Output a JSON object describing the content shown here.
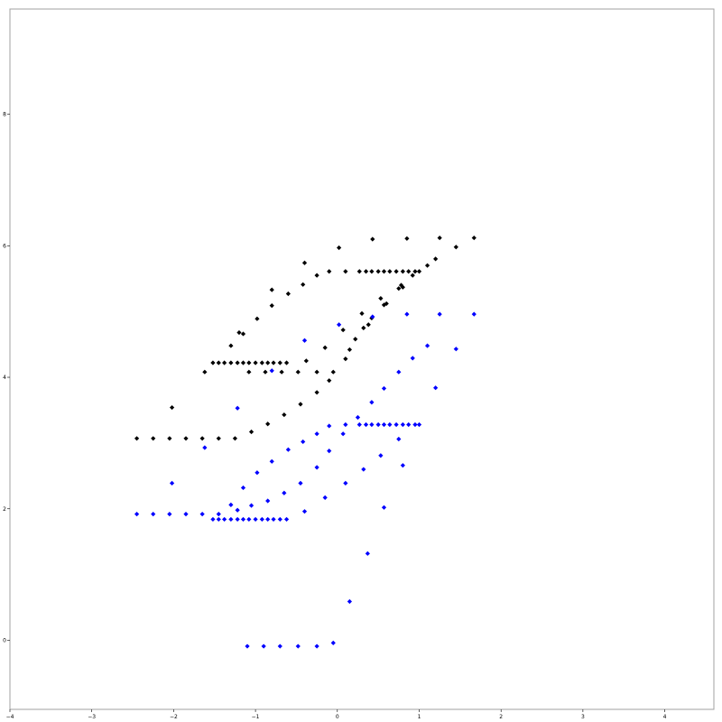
{
  "chart_data": {
    "type": "scatter",
    "xlim": [
      -4.0,
      4.6
    ],
    "ylim": [
      -1.05,
      9.6
    ],
    "grid": false,
    "legend": "none",
    "x_ticks": [
      -4,
      -3,
      -2,
      -1,
      0,
      1,
      2,
      3,
      4
    ],
    "x_tick_labels": [
      "−4",
      "−3",
      "−2",
      "−1",
      "0",
      "1",
      "2",
      "3",
      "4"
    ],
    "y_ticks": [
      0,
      2,
      4,
      6,
      8
    ],
    "y_tick_labels": [
      "0",
      "2",
      "4",
      "6",
      "8"
    ],
    "series": [
      {
        "color": "#000000",
        "points": [
          [
            -2.45,
            3.07
          ],
          [
            -2.25,
            3.07
          ],
          [
            -2.05,
            3.07
          ],
          [
            -1.85,
            3.07
          ],
          [
            -1.65,
            3.07
          ],
          [
            -1.45,
            3.07
          ],
          [
            -1.25,
            3.07
          ],
          [
            -2.02,
            3.54
          ],
          [
            -1.62,
            4.08
          ],
          [
            -1.52,
            4.22
          ],
          [
            -1.45,
            4.22
          ],
          [
            -1.38,
            4.22
          ],
          [
            -1.3,
            4.22
          ],
          [
            -1.22,
            4.22
          ],
          [
            -1.15,
            4.22
          ],
          [
            -1.08,
            4.22
          ],
          [
            -1.0,
            4.22
          ],
          [
            -0.92,
            4.22
          ],
          [
            -0.85,
            4.22
          ],
          [
            -0.78,
            4.22
          ],
          [
            -0.7,
            4.22
          ],
          [
            -0.62,
            4.22
          ],
          [
            -1.3,
            4.48
          ],
          [
            -1.2,
            4.68
          ],
          [
            -1.15,
            4.66
          ],
          [
            -1.08,
            4.08
          ],
          [
            -0.88,
            4.08
          ],
          [
            -0.68,
            4.08
          ],
          [
            -0.48,
            4.08
          ],
          [
            -0.25,
            4.08
          ],
          [
            -1.05,
            3.17
          ],
          [
            -0.85,
            3.29
          ],
          [
            -0.65,
            3.43
          ],
          [
            -0.45,
            3.59
          ],
          [
            -0.25,
            3.77
          ],
          [
            -0.1,
            3.95
          ],
          [
            -0.05,
            4.08
          ],
          [
            0.1,
            4.28
          ],
          [
            0.15,
            4.42
          ],
          [
            0.22,
            4.58
          ],
          [
            0.32,
            4.75
          ],
          [
            -0.98,
            4.89
          ],
          [
            -0.8,
            5.09
          ],
          [
            -0.6,
            5.27
          ],
          [
            -0.42,
            5.41
          ],
          [
            -0.25,
            5.55
          ],
          [
            -0.8,
            5.33
          ],
          [
            -0.4,
            5.74
          ],
          [
            -0.38,
            4.25
          ],
          [
            -0.15,
            4.45
          ],
          [
            -0.1,
            5.61
          ],
          [
            0.1,
            5.61
          ],
          [
            0.27,
            5.61
          ],
          [
            0.35,
            5.61
          ],
          [
            0.42,
            5.61
          ],
          [
            0.5,
            5.61
          ],
          [
            0.57,
            5.61
          ],
          [
            0.64,
            5.61
          ],
          [
            0.72,
            5.61
          ],
          [
            0.8,
            5.61
          ],
          [
            0.87,
            5.61
          ],
          [
            0.95,
            5.61
          ],
          [
            1.0,
            5.61
          ],
          [
            0.02,
            5.97
          ],
          [
            0.07,
            4.72
          ],
          [
            0.3,
            4.97
          ],
          [
            0.38,
            4.8
          ],
          [
            0.42,
            4.9
          ],
          [
            0.53,
            5.2
          ],
          [
            0.57,
            5.1
          ],
          [
            0.6,
            5.12
          ],
          [
            0.75,
            5.35
          ],
          [
            0.78,
            5.4
          ],
          [
            0.8,
            5.37
          ],
          [
            0.43,
            6.1
          ],
          [
            0.85,
            6.11
          ],
          [
            1.25,
            6.12
          ],
          [
            1.67,
            6.12
          ],
          [
            0.92,
            5.55
          ],
          [
            1.1,
            5.7
          ],
          [
            1.2,
            5.8
          ],
          [
            1.45,
            5.98
          ]
        ]
      },
      {
        "color": "#0000ff",
        "points": [
          [
            -2.45,
            1.92
          ],
          [
            -2.25,
            1.92
          ],
          [
            -2.05,
            1.92
          ],
          [
            -1.85,
            1.92
          ],
          [
            -1.65,
            1.92
          ],
          [
            -2.02,
            2.39
          ],
          [
            -1.62,
            2.93
          ],
          [
            -1.22,
            3.53
          ],
          [
            -1.52,
            1.84
          ],
          [
            -1.45,
            1.84
          ],
          [
            -1.38,
            1.84
          ],
          [
            -1.3,
            1.84
          ],
          [
            -1.22,
            1.84
          ],
          [
            -1.15,
            1.84
          ],
          [
            -1.08,
            1.84
          ],
          [
            -1.0,
            1.84
          ],
          [
            -0.92,
            1.84
          ],
          [
            -0.85,
            1.84
          ],
          [
            -0.78,
            1.84
          ],
          [
            -0.7,
            1.84
          ],
          [
            -0.62,
            1.84
          ],
          [
            -1.45,
            1.92
          ],
          [
            -1.3,
            2.06
          ],
          [
            -1.22,
            1.98
          ],
          [
            -1.05,
            2.05
          ],
          [
            -0.85,
            2.12
          ],
          [
            -0.65,
            2.24
          ],
          [
            -0.45,
            2.39
          ],
          [
            -0.25,
            2.63
          ],
          [
            -0.1,
            2.88
          ],
          [
            0.07,
            3.14
          ],
          [
            0.25,
            3.39
          ],
          [
            0.42,
            3.62
          ],
          [
            0.57,
            3.83
          ],
          [
            0.75,
            4.08
          ],
          [
            0.92,
            4.29
          ],
          [
            1.1,
            4.48
          ],
          [
            -1.15,
            2.32
          ],
          [
            -0.98,
            2.55
          ],
          [
            -0.8,
            2.72
          ],
          [
            -0.6,
            2.9
          ],
          [
            -0.42,
            3.02
          ],
          [
            -0.25,
            3.14
          ],
          [
            -0.1,
            3.26
          ],
          [
            0.1,
            3.28
          ],
          [
            0.27,
            3.28
          ],
          [
            0.35,
            3.28
          ],
          [
            0.42,
            3.28
          ],
          [
            0.5,
            3.28
          ],
          [
            0.57,
            3.28
          ],
          [
            0.64,
            3.28
          ],
          [
            0.72,
            3.28
          ],
          [
            0.8,
            3.28
          ],
          [
            0.87,
            3.28
          ],
          [
            0.95,
            3.28
          ],
          [
            1.0,
            3.28
          ],
          [
            -0.8,
            4.1
          ],
          [
            -0.4,
            4.56
          ],
          [
            0.02,
            4.8
          ],
          [
            0.43,
            4.92
          ],
          [
            0.85,
            4.96
          ],
          [
            1.25,
            4.96
          ],
          [
            1.67,
            4.96
          ],
          [
            1.2,
            3.84
          ],
          [
            1.45,
            4.43
          ],
          [
            0.75,
            3.06
          ],
          [
            0.8,
            2.66
          ],
          [
            -0.4,
            1.96
          ],
          [
            -0.15,
            2.17
          ],
          [
            0.1,
            2.39
          ],
          [
            0.32,
            2.6
          ],
          [
            0.53,
            2.81
          ],
          [
            0.57,
            2.02
          ],
          [
            0.37,
            1.32
          ],
          [
            0.15,
            0.59
          ],
          [
            -0.05,
            -0.04
          ],
          [
            -1.1,
            -0.09
          ],
          [
            -0.9,
            -0.09
          ],
          [
            -0.7,
            -0.09
          ],
          [
            -0.48,
            -0.09
          ],
          [
            -0.25,
            -0.09
          ]
        ]
      }
    ]
  }
}
